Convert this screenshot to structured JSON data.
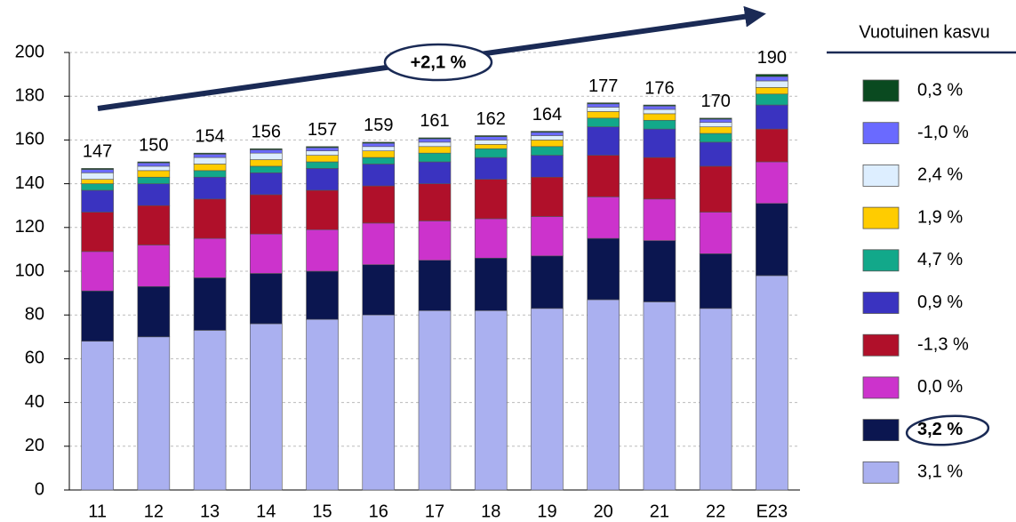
{
  "chart_data": {
    "type": "stacked_bar",
    "categories": [
      "11",
      "12",
      "13",
      "14",
      "15",
      "16",
      "17",
      "18",
      "19",
      "20",
      "21",
      "22",
      "E23"
    ],
    "totals": [
      147,
      150,
      154,
      156,
      157,
      159,
      161,
      162,
      164,
      177,
      176,
      170,
      190
    ],
    "ylim": [
      0,
      200
    ],
    "yticks": [
      0,
      20,
      40,
      60,
      80,
      100,
      120,
      140,
      160,
      180,
      200
    ],
    "grid": true,
    "legend_title": "Vuotuinen kasvu",
    "annotation": "+2,1 %",
    "series": [
      {
        "name": "3,1 %",
        "color": "#aab0f0",
        "values": [
          68,
          70,
          73,
          76,
          78,
          80,
          82,
          82,
          83,
          87,
          86,
          83,
          98
        ]
      },
      {
        "name": "3,2 %",
        "color": "#0b1650",
        "values": [
          23,
          23,
          24,
          23,
          22,
          23,
          23,
          24,
          24,
          28,
          28,
          25,
          33
        ]
      },
      {
        "name": "0,0 %",
        "color": "#cc33cc",
        "values": [
          18,
          19,
          18,
          18,
          19,
          19,
          18,
          18,
          18,
          19,
          19,
          19,
          19
        ]
      },
      {
        "name": "-1,3 %",
        "color": "#b0102a",
        "values": [
          18,
          18,
          18,
          18,
          18,
          17,
          17,
          18,
          18,
          19,
          19,
          21,
          15
        ]
      },
      {
        "name": "0,9 %",
        "color": "#3a33c0",
        "values": [
          10,
          10,
          10,
          10,
          10,
          10,
          10,
          10,
          10,
          13,
          13,
          11,
          11
        ]
      },
      {
        "name": "4,7 %",
        "color": "#12a88a",
        "values": [
          3,
          3,
          3,
          3,
          3,
          3,
          4,
          4,
          4,
          4,
          4,
          4,
          5
        ]
      },
      {
        "name": "1,9 %",
        "color": "#ffcc00",
        "values": [
          2,
          3,
          3,
          3,
          3,
          3,
          3,
          2,
          3,
          3,
          3,
          3,
          3
        ]
      },
      {
        "name": "2,4 %",
        "color": "#ddeeff",
        "values": [
          3,
          2,
          3,
          3,
          2,
          2,
          2,
          2,
          2,
          2,
          2,
          2,
          3
        ]
      },
      {
        "name": "-1,0 %",
        "color": "#6a6aff",
        "values": [
          1.5,
          1.5,
          1.5,
          1.5,
          1.5,
          1.5,
          1.5,
          1.5,
          1.5,
          1.5,
          1.5,
          1.5,
          2
        ]
      },
      {
        "name": "0,3 %",
        "color": "#0a4a20",
        "values": [
          0.5,
          0.5,
          0.5,
          0.5,
          0.5,
          0.5,
          0.5,
          0.5,
          0.5,
          0.5,
          0.5,
          0.5,
          1
        ]
      }
    ]
  }
}
